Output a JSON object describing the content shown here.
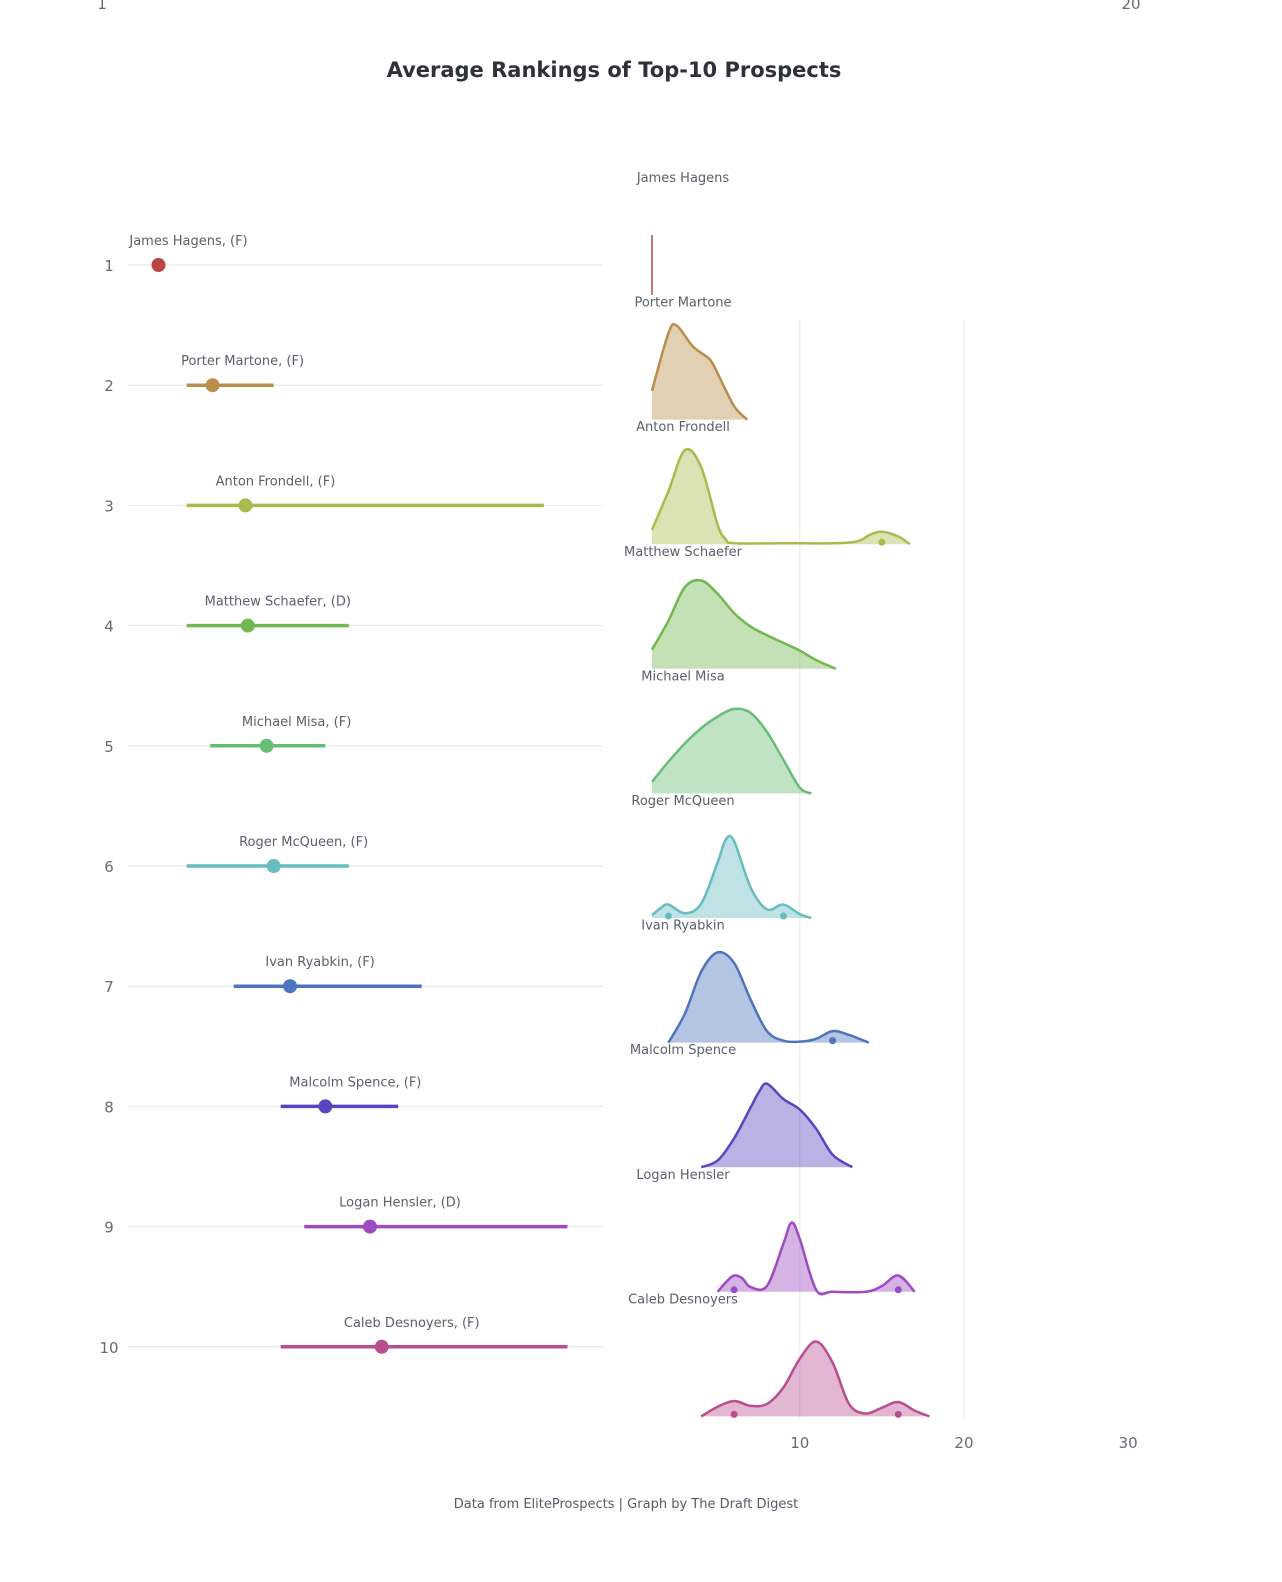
{
  "title": "Average Rankings of Top-10 Prospects",
  "credit": "Data from EliteProspects | Graph by The Draft Digest",
  "corner_labels": {
    "left": "1",
    "right": "20"
  },
  "chart_data": [
    {
      "type": "dot-range",
      "y_categories": [
        "1",
        "2",
        "3",
        "4",
        "5",
        "6",
        "7",
        "8",
        "9",
        "10"
      ],
      "x_range": [
        1,
        20
      ],
      "grid": true,
      "players": [
        {
          "rank": 1,
          "label": "James Hagens, (F)",
          "min": 1.0,
          "mean": 1.0,
          "max": 1.0,
          "color": "#b94545"
        },
        {
          "rank": 2,
          "label": "Porter Martone, (F)",
          "min": 2.2,
          "mean": 3.3,
          "max": 5.9,
          "color": "#b98e4c"
        },
        {
          "rank": 3,
          "label": "Anton Frondell, (F)",
          "min": 2.2,
          "mean": 4.7,
          "max": 17.4,
          "color": "#a9bb4d"
        },
        {
          "rank": 4,
          "label": "Matthew Schaefer, (D)",
          "min": 2.2,
          "mean": 4.8,
          "max": 9.1,
          "color": "#70b84f"
        },
        {
          "rank": 5,
          "label": "Michael Misa, (F)",
          "min": 3.2,
          "mean": 5.6,
          "max": 8.1,
          "color": "#67bd73"
        },
        {
          "rank": 6,
          "label": "Roger McQueen, (F)",
          "min": 2.2,
          "mean": 5.9,
          "max": 9.1,
          "color": "#67bcbf"
        },
        {
          "rank": 7,
          "label": "Ivan Ryabkin, (F)",
          "min": 4.2,
          "mean": 6.6,
          "max": 12.2,
          "color": "#4d74bd"
        },
        {
          "rank": 8,
          "label": "Malcolm Spence, (F)",
          "min": 6.2,
          "mean": 8.1,
          "max": 11.2,
          "color": "#5a45c1"
        },
        {
          "rank": 9,
          "label": "Logan Hensler, (D)",
          "min": 7.2,
          "mean": 10.0,
          "max": 18.4,
          "color": "#9e4ac0"
        },
        {
          "rank": 10,
          "label": "Caleb Desnoyers, (F)",
          "min": 6.2,
          "mean": 10.5,
          "max": 18.4,
          "color": "#b94e8f"
        }
      ]
    },
    {
      "type": "area",
      "subtype": "density-ridgeline",
      "x_ticks": [
        10,
        20,
        30
      ],
      "grid": true,
      "series": [
        {
          "name": "James Hagens",
          "color": "#b94545",
          "x": [
            1,
            1
          ],
          "y": [
            0,
            1
          ],
          "markers": []
        },
        {
          "name": "Porter Martone",
          "color": "#b98e4c",
          "x": [
            1.0,
            2.0,
            2.5,
            3.5,
            4.5,
            5.0,
            6.0,
            6.8
          ],
          "y": [
            0.3,
            0.9,
            0.98,
            0.76,
            0.63,
            0.48,
            0.14,
            0.0
          ],
          "markers": []
        },
        {
          "name": "Anton Frondell",
          "color": "#a9bb4d",
          "x": [
            1.0,
            2.0,
            3.0,
            4.0,
            5.0,
            5.5,
            6.0,
            9.0,
            12.0,
            13.5,
            14.3,
            15.0,
            16.0,
            16.7
          ],
          "y": [
            0.15,
            0.55,
            0.98,
            0.8,
            0.2,
            0.05,
            0.01,
            0.01,
            0.01,
            0.03,
            0.1,
            0.13,
            0.08,
            0.0
          ],
          "markers": [
            15.0
          ]
        },
        {
          "name": "Matthew Schaefer",
          "color": "#70b84f",
          "x": [
            1.0,
            2.0,
            3.0,
            4.0,
            5.0,
            6.0,
            7.0,
            8.0,
            9.0,
            10.0,
            11.0,
            12.2
          ],
          "y": [
            0.2,
            0.5,
            0.85,
            0.92,
            0.78,
            0.58,
            0.44,
            0.35,
            0.27,
            0.19,
            0.09,
            0.0
          ],
          "markers": []
        },
        {
          "name": "Michael Misa",
          "color": "#67bd73",
          "x": [
            1.0,
            2.0,
            3.0,
            4.0,
            5.0,
            6.0,
            7.0,
            8.0,
            9.0,
            10.0,
            10.7
          ],
          "y": [
            0.12,
            0.33,
            0.52,
            0.68,
            0.8,
            0.88,
            0.84,
            0.64,
            0.35,
            0.06,
            0.0
          ],
          "markers": []
        },
        {
          "name": "Roger McQueen",
          "color": "#67bcbf",
          "x": [
            1.0,
            1.5,
            2.0,
            3.0,
            4.0,
            5.0,
            5.5,
            6.0,
            7.0,
            8.0,
            9.0,
            10.0,
            10.7
          ],
          "y": [
            0.03,
            0.1,
            0.14,
            0.05,
            0.15,
            0.58,
            0.82,
            0.8,
            0.32,
            0.09,
            0.14,
            0.04,
            0.0
          ],
          "markers": [
            2.0,
            9.0
          ]
        },
        {
          "name": "Ivan Ryabkin",
          "color": "#4d74bd",
          "x": [
            2.0,
            3.0,
            4.0,
            5.0,
            6.0,
            7.0,
            8.0,
            9.0,
            10.0,
            11.0,
            12.0,
            13.0,
            14.2
          ],
          "y": [
            0.0,
            0.3,
            0.74,
            0.94,
            0.83,
            0.45,
            0.12,
            0.02,
            0.01,
            0.04,
            0.12,
            0.08,
            0.0
          ],
          "markers": [
            12.0
          ]
        },
        {
          "name": "Malcolm Spence",
          "color": "#5a45c1",
          "x": [
            4.0,
            5.0,
            6.0,
            7.0,
            7.5,
            8.0,
            9.0,
            10.0,
            11.0,
            12.0,
            13.2
          ],
          "y": [
            0.0,
            0.07,
            0.3,
            0.62,
            0.78,
            0.87,
            0.71,
            0.6,
            0.4,
            0.13,
            0.0
          ],
          "markers": []
        },
        {
          "name": "Logan Hensler",
          "color": "#9e4ac0",
          "x": [
            5.0,
            5.5,
            6.0,
            6.5,
            7.0,
            8.0,
            9.0,
            9.5,
            10.0,
            11.0,
            12.0,
            14.0,
            15.0,
            16.0,
            17.0
          ],
          "y": [
            0.0,
            0.1,
            0.17,
            0.14,
            0.05,
            0.06,
            0.5,
            0.72,
            0.55,
            0.02,
            0.0,
            0.0,
            0.06,
            0.17,
            0.0
          ],
          "markers": [
            6.0,
            16.0
          ]
        },
        {
          "name": "Caleb Desnoyers",
          "color": "#b94e8f",
          "x": [
            4.0,
            5.0,
            6.0,
            7.0,
            8.0,
            9.0,
            10.0,
            11.0,
            12.0,
            13.0,
            14.0,
            15.0,
            16.0,
            17.0,
            17.9
          ],
          "y": [
            0.0,
            0.1,
            0.16,
            0.11,
            0.13,
            0.3,
            0.6,
            0.78,
            0.56,
            0.13,
            0.03,
            0.09,
            0.15,
            0.06,
            0.0
          ],
          "markers": [
            6.0,
            16.0
          ]
        }
      ]
    }
  ]
}
